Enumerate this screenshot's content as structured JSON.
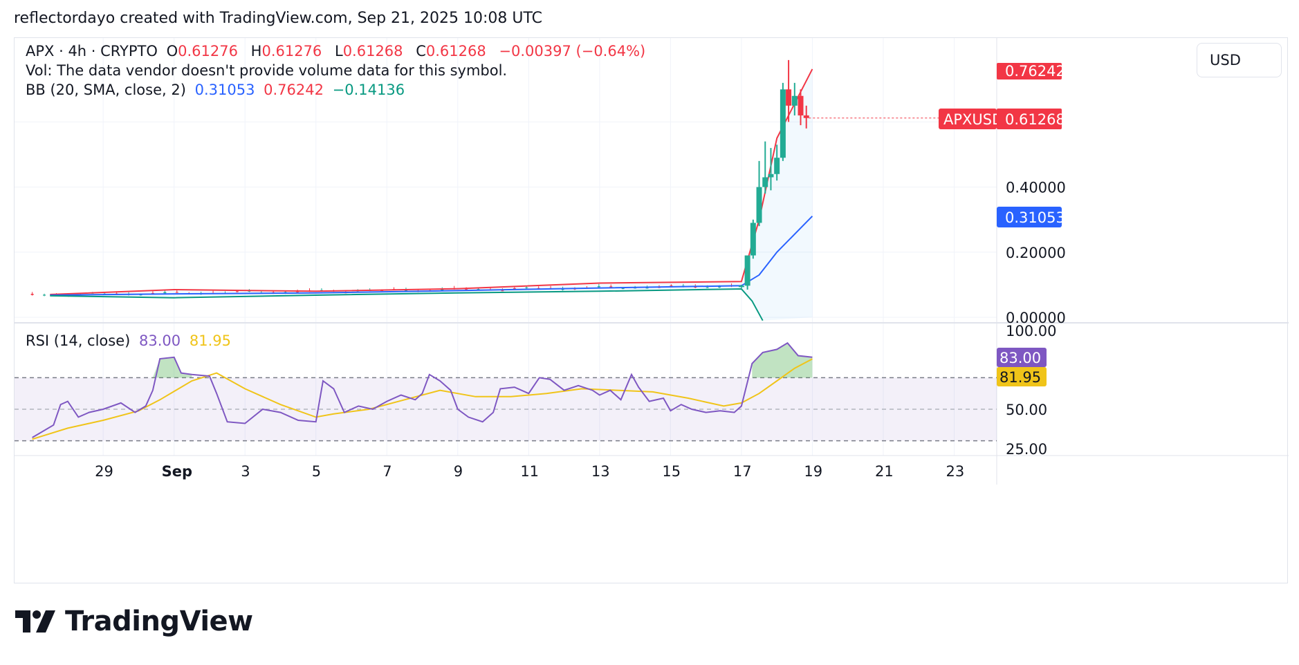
{
  "credit": "reflectordayo created with TradingView.com, Sep 21, 2025 10:08 UTC",
  "brand": "TradingView",
  "currency_button": "USD",
  "legend": {
    "symbol": "APX · 4h · CRYPTO",
    "o_label": "O",
    "o_value": "0.61276",
    "h_label": "H",
    "h_value": "0.61276",
    "l_label": "L",
    "l_value": "0.61268",
    "c_label": "C",
    "c_value": "0.61268",
    "change": "−0.00397 (−0.64%)",
    "vol_text": "Vol: The data vendor doesn't provide volume data for this symbol.",
    "bb_label": "BB (20, SMA, close, 2)",
    "bb_basis": "0.31053",
    "bb_upper": "0.76242",
    "bb_lower": "−0.14136",
    "rsi_label": "RSI (14, close)",
    "rsi_value": "83.00",
    "rsi_ma": "81.95"
  },
  "colors": {
    "up": "#22ab94",
    "down": "#f23645",
    "bb_basis": "#2962ff",
    "bb_upper": "#f23645",
    "bb_lower": "#089981",
    "rsi": "#7e57c2",
    "rsi_ma": "#f0c419",
    "grid": "#f0f3fa"
  },
  "chart_data": [
    {
      "type": "candlestick",
      "title": "APX · 4h · CRYPTO",
      "x_ticks": [
        "29",
        "Sep",
        "3",
        "5",
        "7",
        "9",
        "11",
        "13",
        "15",
        "17",
        "19",
        "21",
        "23"
      ],
      "x_tick_days": [
        29,
        31,
        33,
        35,
        37,
        39,
        41,
        43,
        45,
        47,
        49,
        51,
        53
      ],
      "x_unit_note": "days from Aug 1 (Sep 1 = 31)",
      "y_ticks": [
        "0.00000",
        "0.20000",
        "0.40000"
      ],
      "ylim": [
        0,
        0.8
      ],
      "price_labels": {
        "symbol_tag": "APXUSD",
        "last_price": "0.61268",
        "upper_band": "0.76242",
        "basis": "0.31053"
      },
      "candles_recent": [
        {
          "day": 47.0,
          "o": 0.095,
          "h": 0.1,
          "l": 0.09,
          "c": 0.097
        },
        {
          "day": 47.17,
          "o": 0.097,
          "h": 0.12,
          "l": 0.085,
          "c": 0.19
        },
        {
          "day": 47.33,
          "o": 0.19,
          "h": 0.3,
          "l": 0.18,
          "c": 0.29
        },
        {
          "day": 47.5,
          "o": 0.29,
          "h": 0.48,
          "l": 0.28,
          "c": 0.4
        },
        {
          "day": 47.67,
          "o": 0.4,
          "h": 0.54,
          "l": 0.38,
          "c": 0.43
        },
        {
          "day": 47.83,
          "o": 0.43,
          "h": 0.52,
          "l": 0.39,
          "c": 0.44
        },
        {
          "day": 48.0,
          "o": 0.44,
          "h": 0.53,
          "l": 0.42,
          "c": 0.49
        },
        {
          "day": 48.17,
          "o": 0.49,
          "h": 0.72,
          "l": 0.48,
          "c": 0.7
        },
        {
          "day": 48.33,
          "o": 0.7,
          "h": 0.79,
          "l": 0.6,
          "c": 0.65
        },
        {
          "day": 48.5,
          "o": 0.65,
          "h": 0.72,
          "l": 0.62,
          "c": 0.68
        },
        {
          "day": 48.67,
          "o": 0.68,
          "h": 0.7,
          "l": 0.59,
          "c": 0.62
        },
        {
          "day": 48.83,
          "o": 0.62,
          "h": 0.65,
          "l": 0.58,
          "c": 0.612
        }
      ],
      "flat_price_range": [
        0.06,
        0.11
      ],
      "bb_basis": [
        [
          27.5,
          0.068
        ],
        [
          31,
          0.072
        ],
        [
          35,
          0.075
        ],
        [
          39,
          0.082
        ],
        [
          43,
          0.09
        ],
        [
          47,
          0.097
        ],
        [
          47.5,
          0.13
        ],
        [
          48,
          0.2
        ],
        [
          49,
          0.31053
        ]
      ],
      "bb_upper": [
        [
          27.5,
          0.07
        ],
        [
          31,
          0.085
        ],
        [
          35,
          0.08
        ],
        [
          39,
          0.088
        ],
        [
          43,
          0.105
        ],
        [
          47,
          0.11
        ],
        [
          47.5,
          0.3
        ],
        [
          48,
          0.55
        ],
        [
          49,
          0.76242
        ]
      ],
      "bb_lower": [
        [
          27.5,
          0.066
        ],
        [
          31,
          0.06
        ],
        [
          35,
          0.068
        ],
        [
          39,
          0.075
        ],
        [
          43,
          0.08
        ],
        [
          47,
          0.087
        ],
        [
          47.3,
          0.05
        ],
        [
          47.6,
          -0.14136
        ]
      ]
    },
    {
      "type": "line",
      "title": "RSI (14, close)",
      "y_ticks": [
        "25.00",
        "50.00",
        "100.00"
      ],
      "ylim": [
        20,
        100
      ],
      "bands": {
        "upper": 70,
        "middle": 50,
        "lower": 30
      },
      "last_labels": {
        "rsi": "83.00",
        "rsi_ma": "81.95"
      },
      "rsi": [
        [
          27.0,
          32
        ],
        [
          27.6,
          40
        ],
        [
          27.8,
          53
        ],
        [
          28.0,
          55
        ],
        [
          28.3,
          45
        ],
        [
          28.6,
          48
        ],
        [
          29.0,
          50
        ],
        [
          29.5,
          54
        ],
        [
          29.9,
          48
        ],
        [
          30.2,
          52
        ],
        [
          30.4,
          62
        ],
        [
          30.6,
          82
        ],
        [
          31.0,
          83
        ],
        [
          31.2,
          73
        ],
        [
          31.5,
          72
        ],
        [
          32.0,
          71
        ],
        [
          32.2,
          60
        ],
        [
          32.5,
          42
        ],
        [
          33.0,
          41
        ],
        [
          33.5,
          50
        ],
        [
          34.0,
          48
        ],
        [
          34.5,
          43
        ],
        [
          35.0,
          42
        ],
        [
          35.2,
          68
        ],
        [
          35.5,
          63
        ],
        [
          35.8,
          48
        ],
        [
          36.2,
          52
        ],
        [
          36.6,
          50
        ],
        [
          37.0,
          55
        ],
        [
          37.4,
          59
        ],
        [
          37.8,
          56
        ],
        [
          38.0,
          60
        ],
        [
          38.2,
          72
        ],
        [
          38.5,
          68
        ],
        [
          38.8,
          62
        ],
        [
          39.0,
          50
        ],
        [
          39.3,
          45
        ],
        [
          39.7,
          42
        ],
        [
          40.0,
          48
        ],
        [
          40.2,
          63
        ],
        [
          40.6,
          64
        ],
        [
          41.0,
          60
        ],
        [
          41.3,
          70
        ],
        [
          41.6,
          69
        ],
        [
          42.0,
          62
        ],
        [
          42.4,
          65
        ],
        [
          42.8,
          62
        ],
        [
          43.0,
          59
        ],
        [
          43.3,
          62
        ],
        [
          43.6,
          56
        ],
        [
          43.9,
          72
        ],
        [
          44.1,
          64
        ],
        [
          44.4,
          55
        ],
        [
          44.8,
          57
        ],
        [
          45.0,
          49
        ],
        [
          45.3,
          53
        ],
        [
          45.6,
          50
        ],
        [
          46.0,
          48
        ],
        [
          46.4,
          49
        ],
        [
          46.8,
          48
        ],
        [
          47.0,
          52
        ],
        [
          47.3,
          79
        ],
        [
          47.6,
          86
        ],
        [
          48.0,
          88
        ],
        [
          48.3,
          92
        ],
        [
          48.6,
          84
        ],
        [
          49.0,
          83
        ]
      ],
      "rsi_ma": [
        [
          27.0,
          31
        ],
        [
          28.0,
          38
        ],
        [
          29.0,
          43
        ],
        [
          30.0,
          49
        ],
        [
          30.6,
          56
        ],
        [
          31.5,
          68
        ],
        [
          32.2,
          73
        ],
        [
          33.0,
          63
        ],
        [
          34.0,
          53
        ],
        [
          35.0,
          45
        ],
        [
          35.5,
          47
        ],
        [
          36.5,
          50
        ],
        [
          37.5,
          56
        ],
        [
          38.5,
          62
        ],
        [
          39.5,
          58
        ],
        [
          40.5,
          58
        ],
        [
          41.5,
          60
        ],
        [
          42.5,
          63
        ],
        [
          43.5,
          62
        ],
        [
          44.5,
          61
        ],
        [
          45.5,
          57
        ],
        [
          46.5,
          52
        ],
        [
          47.0,
          54
        ],
        [
          47.5,
          60
        ],
        [
          48.0,
          68
        ],
        [
          48.5,
          76
        ],
        [
          49.0,
          81.95
        ]
      ]
    }
  ]
}
